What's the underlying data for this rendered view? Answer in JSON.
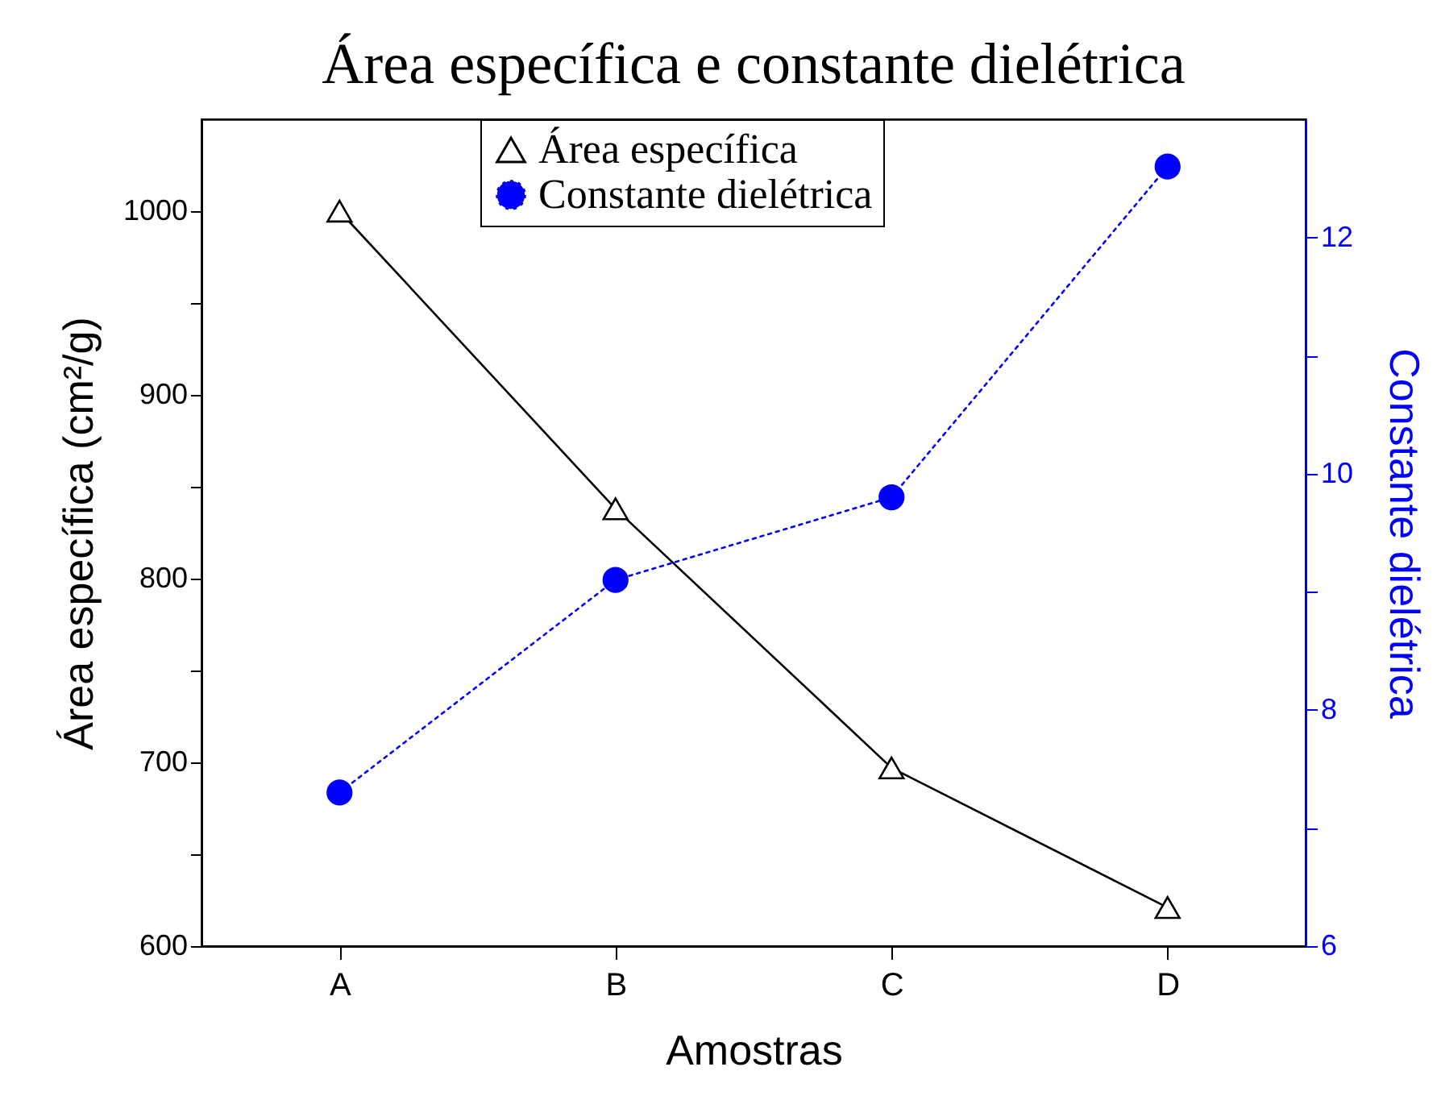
{
  "chart_data": {
    "type": "line",
    "title": "Área específica e constante dielétrica",
    "xlabel": "Amostras",
    "ylabel": "Área específica (cm²/g)",
    "y2label": "Constante dielétrica",
    "categories": [
      "A",
      "B",
      "C",
      "D"
    ],
    "series": [
      {
        "name": "Área específica",
        "color": "#000000",
        "marker": "triangle",
        "line_style": "solid",
        "values": [
          1000,
          838,
          697,
          621
        ]
      },
      {
        "name": "Constante dielétrica",
        "color": "#0000ff",
        "marker": "circle",
        "line_style": "dotted",
        "axis": "y2",
        "values": [
          7.3,
          9.1,
          9.8,
          12.6
        ]
      }
    ],
    "ylim": [
      600,
      1050
    ],
    "yticks": [
      600,
      {
        "value": 650,
        "label": null
      },
      700,
      {
        "value": 750,
        "label": null
      },
      800,
      {
        "value": 850,
        "label": null
      },
      900,
      {
        "value": 950,
        "label": null
      },
      1000
    ],
    "y2lim": [
      6,
      13
    ],
    "y2ticks": [
      6,
      {
        "value": 7,
        "label": null
      },
      8,
      {
        "value": 9,
        "label": null
      },
      10,
      {
        "value": 11,
        "label": null
      },
      12
    ],
    "legend": "top",
    "grid": false
  }
}
